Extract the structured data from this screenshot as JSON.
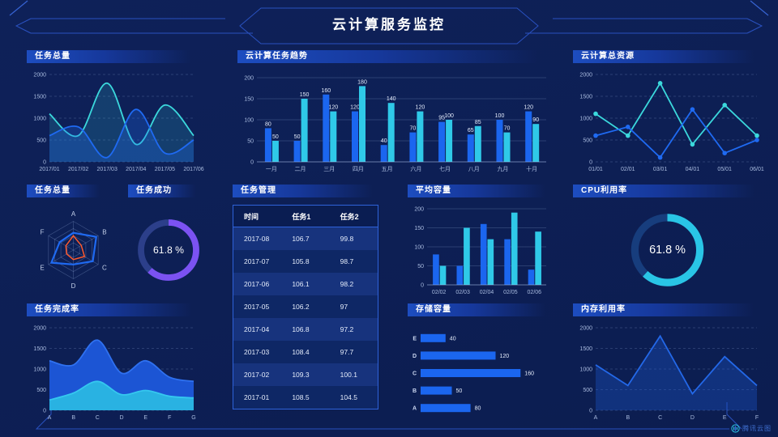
{
  "header": {
    "title": "云计算服务监控"
  },
  "footer": {
    "logo_text": "腾讯云图"
  },
  "colors": {
    "background": "#0d2055",
    "series_blue": "#1b66ef",
    "series_cyan": "#2fc9e8",
    "series_teal": "#3bd8dc",
    "gauge_purple": "#7b52f2",
    "gauge_cyan": "#29c5e6",
    "radar_orange": "#ff5a2d",
    "panel_header_blue": "#1d4dc0",
    "table_border": "#2e62d9"
  },
  "panels": {
    "p1": {
      "title": "任务总量"
    },
    "p2": {
      "title": "云计算任务趋势"
    },
    "p3": {
      "title": "云计算总资源"
    },
    "p4": {
      "title": "任务总量"
    },
    "p5": {
      "title": "任务成功"
    },
    "p6": {
      "title": "任务管理"
    },
    "p7": {
      "title": "平均容量"
    },
    "p8": {
      "title": "CPU利用率"
    },
    "p9": {
      "title": "任务完成率"
    },
    "p10": {
      "title": "存储容量"
    },
    "p11": {
      "title": "内存利用率"
    }
  },
  "chart_data": [
    {
      "id": "tasks_total",
      "type": "area",
      "title": "任务总量",
      "smooth": true,
      "x": [
        "2017/01",
        "2017/02",
        "2017/03",
        "2017/04",
        "2017/05",
        "2017/06"
      ],
      "series": [
        {
          "name": "series-cyan",
          "color": "#3bd8dc",
          "fill": "rgba(58,200,215,0.18)",
          "values": [
            1100,
            600,
            1800,
            400,
            1300,
            600
          ]
        },
        {
          "name": "series-blue",
          "color": "#1f6af2",
          "fill": "rgba(31,106,242,0.28)",
          "values": [
            600,
            800,
            100,
            1200,
            200,
            500
          ]
        }
      ],
      "ylim": [
        0,
        2000
      ],
      "yticks": [
        0,
        500,
        1000,
        1500,
        2000
      ]
    },
    {
      "id": "task_trend",
      "type": "bar",
      "title": "云计算任务趋势",
      "value_labels": true,
      "categories": [
        "一月",
        "二月",
        "三月",
        "四月",
        "五月",
        "六月",
        "七月",
        "八月",
        "九月",
        "十月"
      ],
      "series": [
        {
          "name": "series-blue",
          "color": "#1b66ef",
          "values": [
            80,
            50,
            160,
            120,
            40,
            70,
            95,
            65,
            100,
            120
          ]
        },
        {
          "name": "series-cyan",
          "color": "#2fc9e8",
          "values": [
            50,
            150,
            120,
            180,
            140,
            120,
            100,
            85,
            70,
            90
          ]
        }
      ],
      "ylim": [
        0,
        200
      ],
      "yticks": [
        0,
        50,
        100,
        150,
        200
      ]
    },
    {
      "id": "total_resources",
      "type": "line",
      "title": "云计算总资源",
      "markers": true,
      "x": [
        "01/01",
        "02/01",
        "03/01",
        "04/01",
        "05/01",
        "06/01"
      ],
      "series": [
        {
          "name": "series-cyan",
          "color": "#3bd8dc",
          "values": [
            1100,
            600,
            1800,
            400,
            1300,
            600
          ]
        },
        {
          "name": "series-blue",
          "color": "#1f6af2",
          "values": [
            600,
            800,
            100,
            1200,
            200,
            500
          ]
        }
      ],
      "ylim": [
        0,
        2000
      ],
      "yticks": [
        0,
        500,
        1000,
        1500,
        2000
      ]
    },
    {
      "id": "radar_tasks",
      "type": "radar",
      "title": "任务总量",
      "max": 100,
      "axes": [
        "A",
        "B",
        "C",
        "D",
        "E",
        "F"
      ],
      "series": [
        {
          "name": "blue-polygon",
          "color": "#1f6af2",
          "values": [
            60,
            92,
            78,
            50,
            88,
            55
          ]
        },
        {
          "name": "orange-polygon",
          "color": "#ff5a2d",
          "values": [
            50,
            32,
            45,
            33,
            27,
            30
          ]
        }
      ]
    },
    {
      "id": "task_success_gauge",
      "type": "donut",
      "title": "任务成功",
      "value": 61.8,
      "label": "61.8 %",
      "color": "#7b52f2",
      "track": "#2c3f8a"
    },
    {
      "id": "task_table",
      "type": "table",
      "title": "任务管理",
      "columns": [
        "时间",
        "任务1",
        "任务2"
      ],
      "rows": [
        [
          "2017-08",
          "106.7",
          "99.8"
        ],
        [
          "2017-07",
          "105.8",
          "98.7"
        ],
        [
          "2017-06",
          "106.1",
          "98.2"
        ],
        [
          "2017-05",
          "106.2",
          "97"
        ],
        [
          "2017-04",
          "106.8",
          "97.2"
        ],
        [
          "2017-03",
          "108.4",
          "97.7"
        ],
        [
          "2017-02",
          "109.3",
          "100.1"
        ],
        [
          "2017-01",
          "108.5",
          "104.5"
        ]
      ]
    },
    {
      "id": "avg_capacity",
      "type": "bar",
      "title": "平均容量",
      "value_labels": false,
      "categories": [
        "02/02",
        "02/03",
        "02/04",
        "02/05",
        "02/06"
      ],
      "series": [
        {
          "name": "series-blue",
          "color": "#1b66ef",
          "values": [
            80,
            50,
            160,
            120,
            40
          ]
        },
        {
          "name": "series-cyan",
          "color": "#2fc9e8",
          "values": [
            50,
            150,
            120,
            190,
            140
          ]
        }
      ],
      "ylim": [
        0,
        200
      ],
      "yticks": [
        0,
        50,
        100,
        150,
        200
      ]
    },
    {
      "id": "cpu_gauge",
      "type": "donut",
      "title": "CPU利用率",
      "value": 61.8,
      "label": "61.8 %",
      "color": "#29c5e6",
      "track": "#173d7d"
    },
    {
      "id": "completion_rate",
      "type": "area",
      "title": "任务完成率",
      "smooth": true,
      "x": [
        "A",
        "B",
        "C",
        "D",
        "E",
        "F",
        "G"
      ],
      "series": [
        {
          "name": "series-blue",
          "color": "#2f71f0",
          "fill": "#1c55d4",
          "values": [
            1200,
            1100,
            1700,
            900,
            1200,
            800,
            700
          ]
        },
        {
          "name": "series-cyan",
          "color": "#35c8ef",
          "fill": "#29b2e2",
          "values": [
            250,
            420,
            700,
            380,
            480,
            340,
            300
          ]
        }
      ],
      "ylim": [
        0,
        2000
      ],
      "yticks": [
        0,
        500,
        1000,
        1500,
        2000
      ]
    },
    {
      "id": "storage",
      "type": "hbar",
      "title": "存储容量",
      "color": "#1b66ef",
      "xmax": 170,
      "categories": [
        "E",
        "D",
        "C",
        "B",
        "A"
      ],
      "values": [
        40,
        120,
        160,
        50,
        80
      ]
    },
    {
      "id": "memory",
      "type": "line",
      "title": "内存利用率",
      "smooth": false,
      "x": [
        "A",
        "B",
        "C",
        "D",
        "E",
        "F"
      ],
      "series": [
        {
          "name": "series-blue",
          "color": "#2368e8",
          "fill": "rgba(30,90,210,0.35)",
          "values": [
            1100,
            600,
            1800,
            400,
            1300,
            600
          ]
        }
      ],
      "ylim": [
        0,
        2000
      ],
      "yticks": [
        0,
        500,
        1000,
        1500,
        2000
      ]
    }
  ]
}
